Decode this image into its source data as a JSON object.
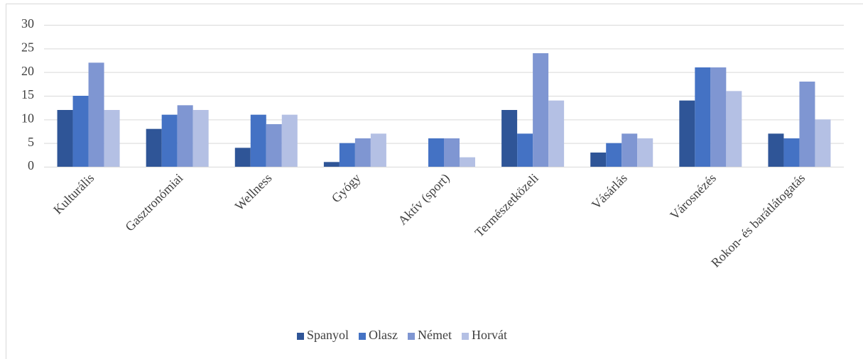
{
  "chart_data": {
    "type": "bar",
    "categories": [
      "Kulturális",
      "Gasztronómiai",
      "Wellness",
      "Gyógy",
      "Aktív (sport)",
      "Természetközeli",
      "Vásárlás",
      "Városnézés",
      "Rokon- és barátlátogatás"
    ],
    "series": [
      {
        "name": "Spanyol",
        "color": "#2f5597",
        "values": [
          12,
          8,
          4,
          1,
          0,
          12,
          3,
          14,
          7
        ]
      },
      {
        "name": "Olasz",
        "color": "#4472c4",
        "values": [
          15,
          11,
          11,
          5,
          6,
          7,
          5,
          21,
          6
        ]
      },
      {
        "name": "Német",
        "color": "#7f96d2",
        "values": [
          22,
          13,
          9,
          6,
          6,
          24,
          7,
          21,
          18
        ]
      },
      {
        "name": "Horvát",
        "color": "#b4c0e4",
        "values": [
          12,
          12,
          11,
          7,
          2,
          14,
          6,
          16,
          10
        ]
      }
    ],
    "ylim": [
      0,
      30
    ],
    "yticks": [
      0,
      5,
      10,
      15,
      20,
      25,
      30
    ],
    "grid": true,
    "legend": "bottom"
  }
}
